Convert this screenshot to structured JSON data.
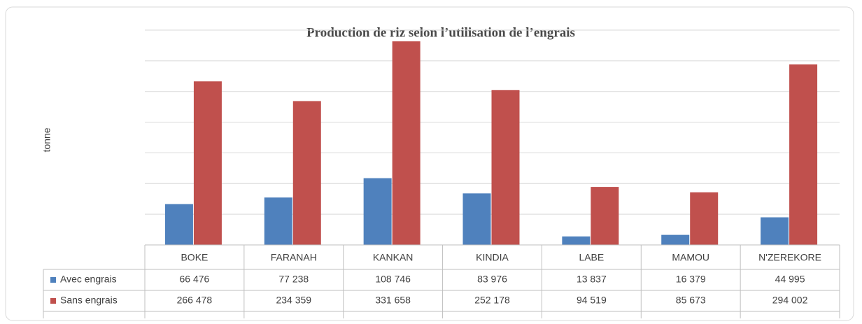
{
  "chart_data": {
    "type": "bar",
    "title": "Production de riz selon l’utilisation de l’engrais",
    "y_label": "tonne",
    "categories": [
      "BOKE",
      "FARANAH",
      "KANKAN",
      "KINDIA",
      "LABE",
      "MAMOU",
      "N'ZEREKORE"
    ],
    "series": [
      {
        "name": "Avec engrais",
        "color": "#4f81bd",
        "values": [
          66476,
          77238,
          108746,
          83976,
          13837,
          16379,
          44995
        ],
        "value_labels": [
          "66 476",
          "77 238",
          "108 746",
          "83 976",
          "13 837",
          "16 379",
          "44 995"
        ]
      },
      {
        "name": "Sans engrais",
        "color": "#c0504d",
        "values": [
          266478,
          234359,
          331658,
          252178,
          94519,
          85673,
          294002
        ],
        "value_labels": [
          "266 478",
          "234 359",
          "331 658",
          "252 178",
          "94 519",
          "85 673",
          "294 002"
        ]
      }
    ],
    "ylim": [
      0,
      350000
    ],
    "yticks": [
      0,
      50000,
      100000,
      150000,
      200000,
      250000,
      300000,
      350000
    ],
    "grid": true
  }
}
